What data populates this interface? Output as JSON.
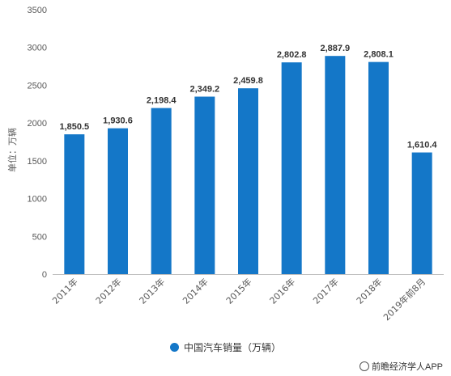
{
  "chart_data": {
    "type": "bar",
    "categories": [
      "2011年",
      "2012年",
      "2013年",
      "2014年",
      "2015年",
      "2016年",
      "2017年",
      "2018年",
      "2019年前8月"
    ],
    "values": [
      1850.5,
      1930.6,
      2198.4,
      2349.2,
      2459.8,
      2802.8,
      2887.9,
      2808.1,
      1610.4
    ],
    "data_labels": [
      "1,850.5",
      "1,930.6",
      "2,198.4",
      "2,349.2",
      "2,459.8",
      "2,802.8",
      "2,887.9",
      "2,808.1",
      "1,610.4"
    ],
    "ylabel": "单位：万辆",
    "ylim": [
      0,
      3500
    ],
    "yticks": [
      0,
      500,
      1000,
      1500,
      2000,
      2500,
      3000,
      3500
    ],
    "legend": {
      "position": "bottom",
      "label": "中国汽车销量（万辆）"
    },
    "grid": false,
    "bar_color": "#1477c8"
  },
  "source": "前瞻经济学人APP"
}
